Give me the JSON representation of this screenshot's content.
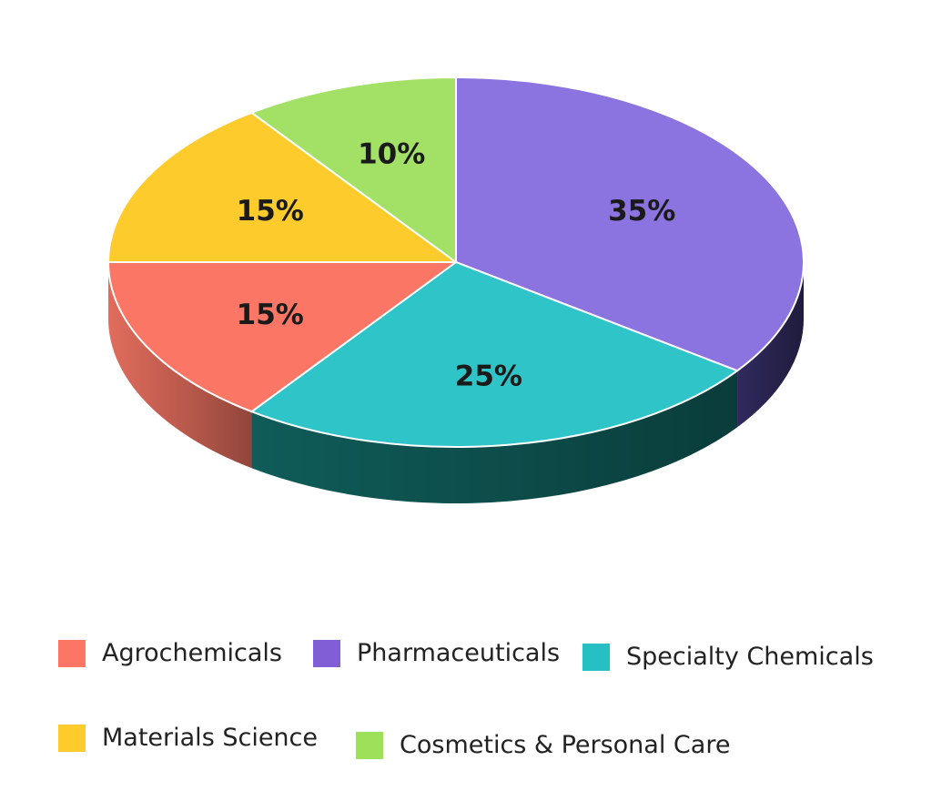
{
  "chart_data": {
    "type": "pie",
    "title": "",
    "slices": [
      {
        "name": "Pharmaceuticals",
        "value": 35,
        "label": "35%",
        "color": "#8b73e0",
        "side_color": "#2f2a5c"
      },
      {
        "name": "Specialty Chemicals",
        "value": 25,
        "label": "25%",
        "color": "#2ec4c8",
        "side_color": "#0f5c59"
      },
      {
        "name": "Agrochemicals",
        "value": 15,
        "label": "15%",
        "color": "#fb7665",
        "side_color": "#e06c5c"
      },
      {
        "name": "Materials Science",
        "value": 15,
        "label": "15%",
        "color": "#fdcb2c",
        "side_color": "#c9a020"
      },
      {
        "name": "Cosmetics & Personal Care",
        "value": 10,
        "label": "10%",
        "color": "#a3e066",
        "side_color": "#6ea43c"
      }
    ],
    "legend": {
      "position": "bottom",
      "items": [
        {
          "label": "Agrochemicals",
          "color": "#fb7665"
        },
        {
          "label": "Pharmaceuticals",
          "color": "#7f5ed6"
        },
        {
          "label": "Specialty Chemicals",
          "color": "#26c0c4"
        },
        {
          "label": "Materials Science",
          "color": "#fdcb2c"
        },
        {
          "label": "Cosmetics & Personal Care",
          "color": "#9de05a"
        }
      ]
    }
  }
}
